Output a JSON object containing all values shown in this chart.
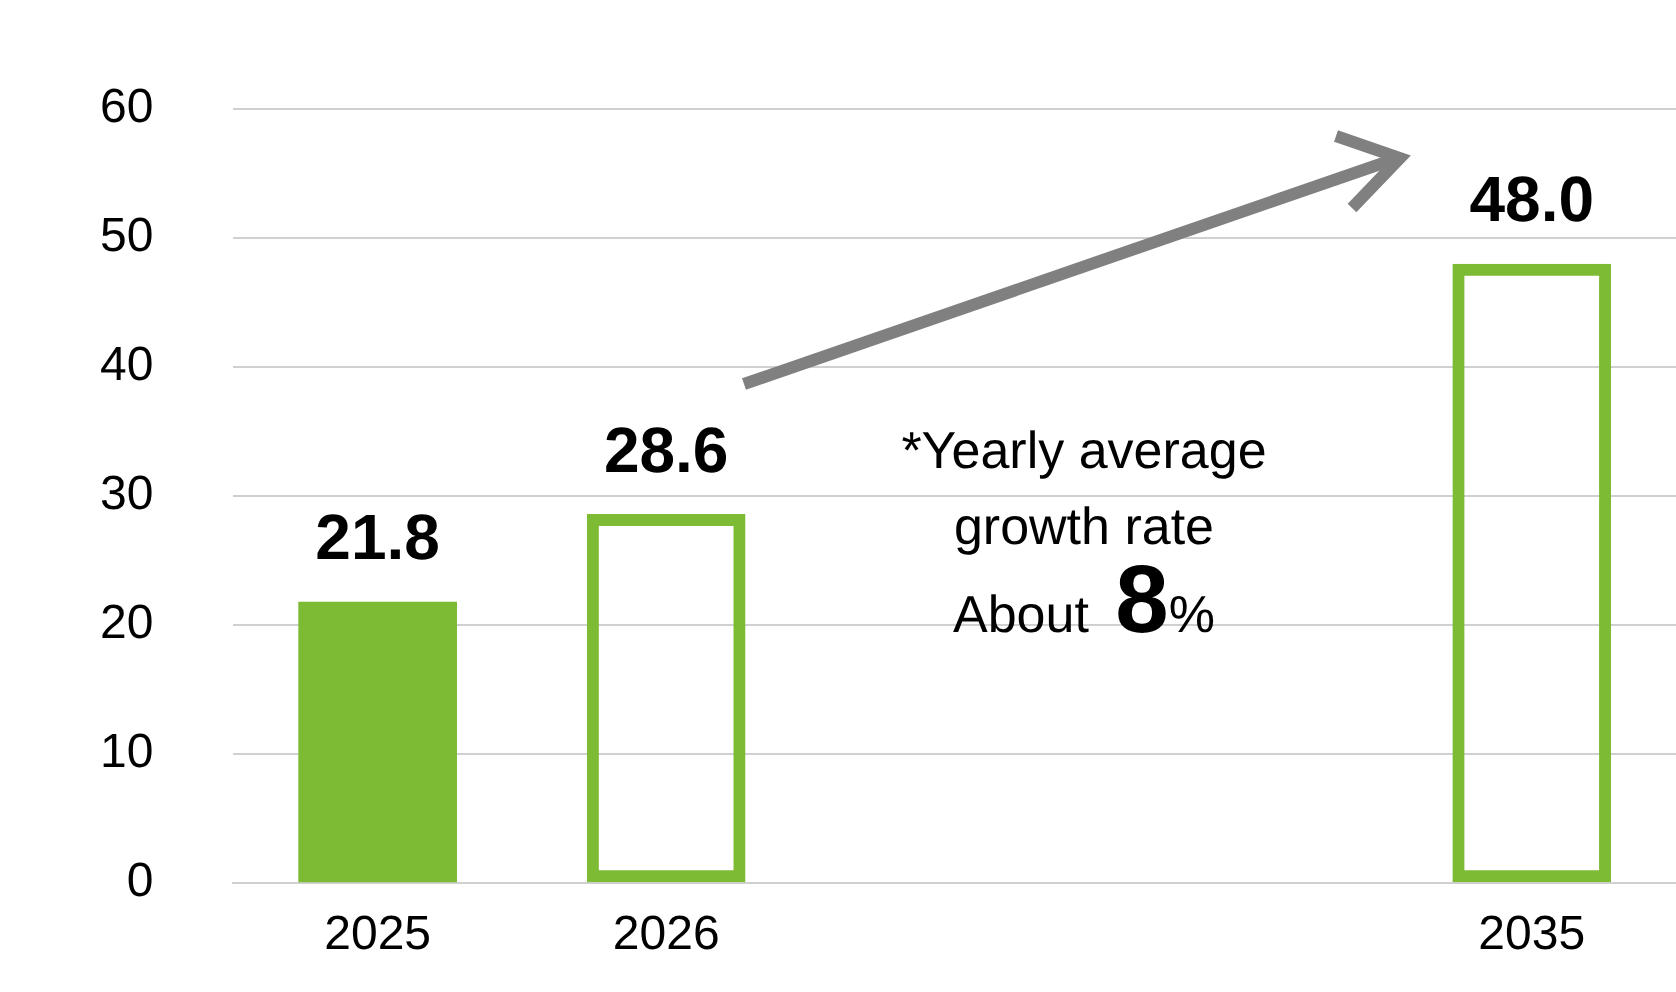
{
  "chart_data": {
    "type": "bar",
    "categories": [
      "2025",
      "2026",
      null,
      null,
      "2035"
    ],
    "series": [
      {
        "color": "#7dbb35",
        "values": [
          21.8,
          null,
          null,
          null,
          null
        ]
      },
      {
        "color": "#7dbb35",
        "values": [
          null,
          28.6,
          null,
          null,
          48.0
        ],
        "value_labels": [
          null,
          "28.6",
          null,
          null,
          "48.0"
        ]
      }
    ],
    "ylim": [
      0,
      60
    ],
    "yticks": [
      0,
      10,
      20,
      30,
      40,
      50,
      60
    ],
    "grid": "y",
    "legend": false,
    "data_labels": true,
    "annotations": [
      "*Yearly average",
      "growth rate",
      "About 8%"
    ]
  }
}
